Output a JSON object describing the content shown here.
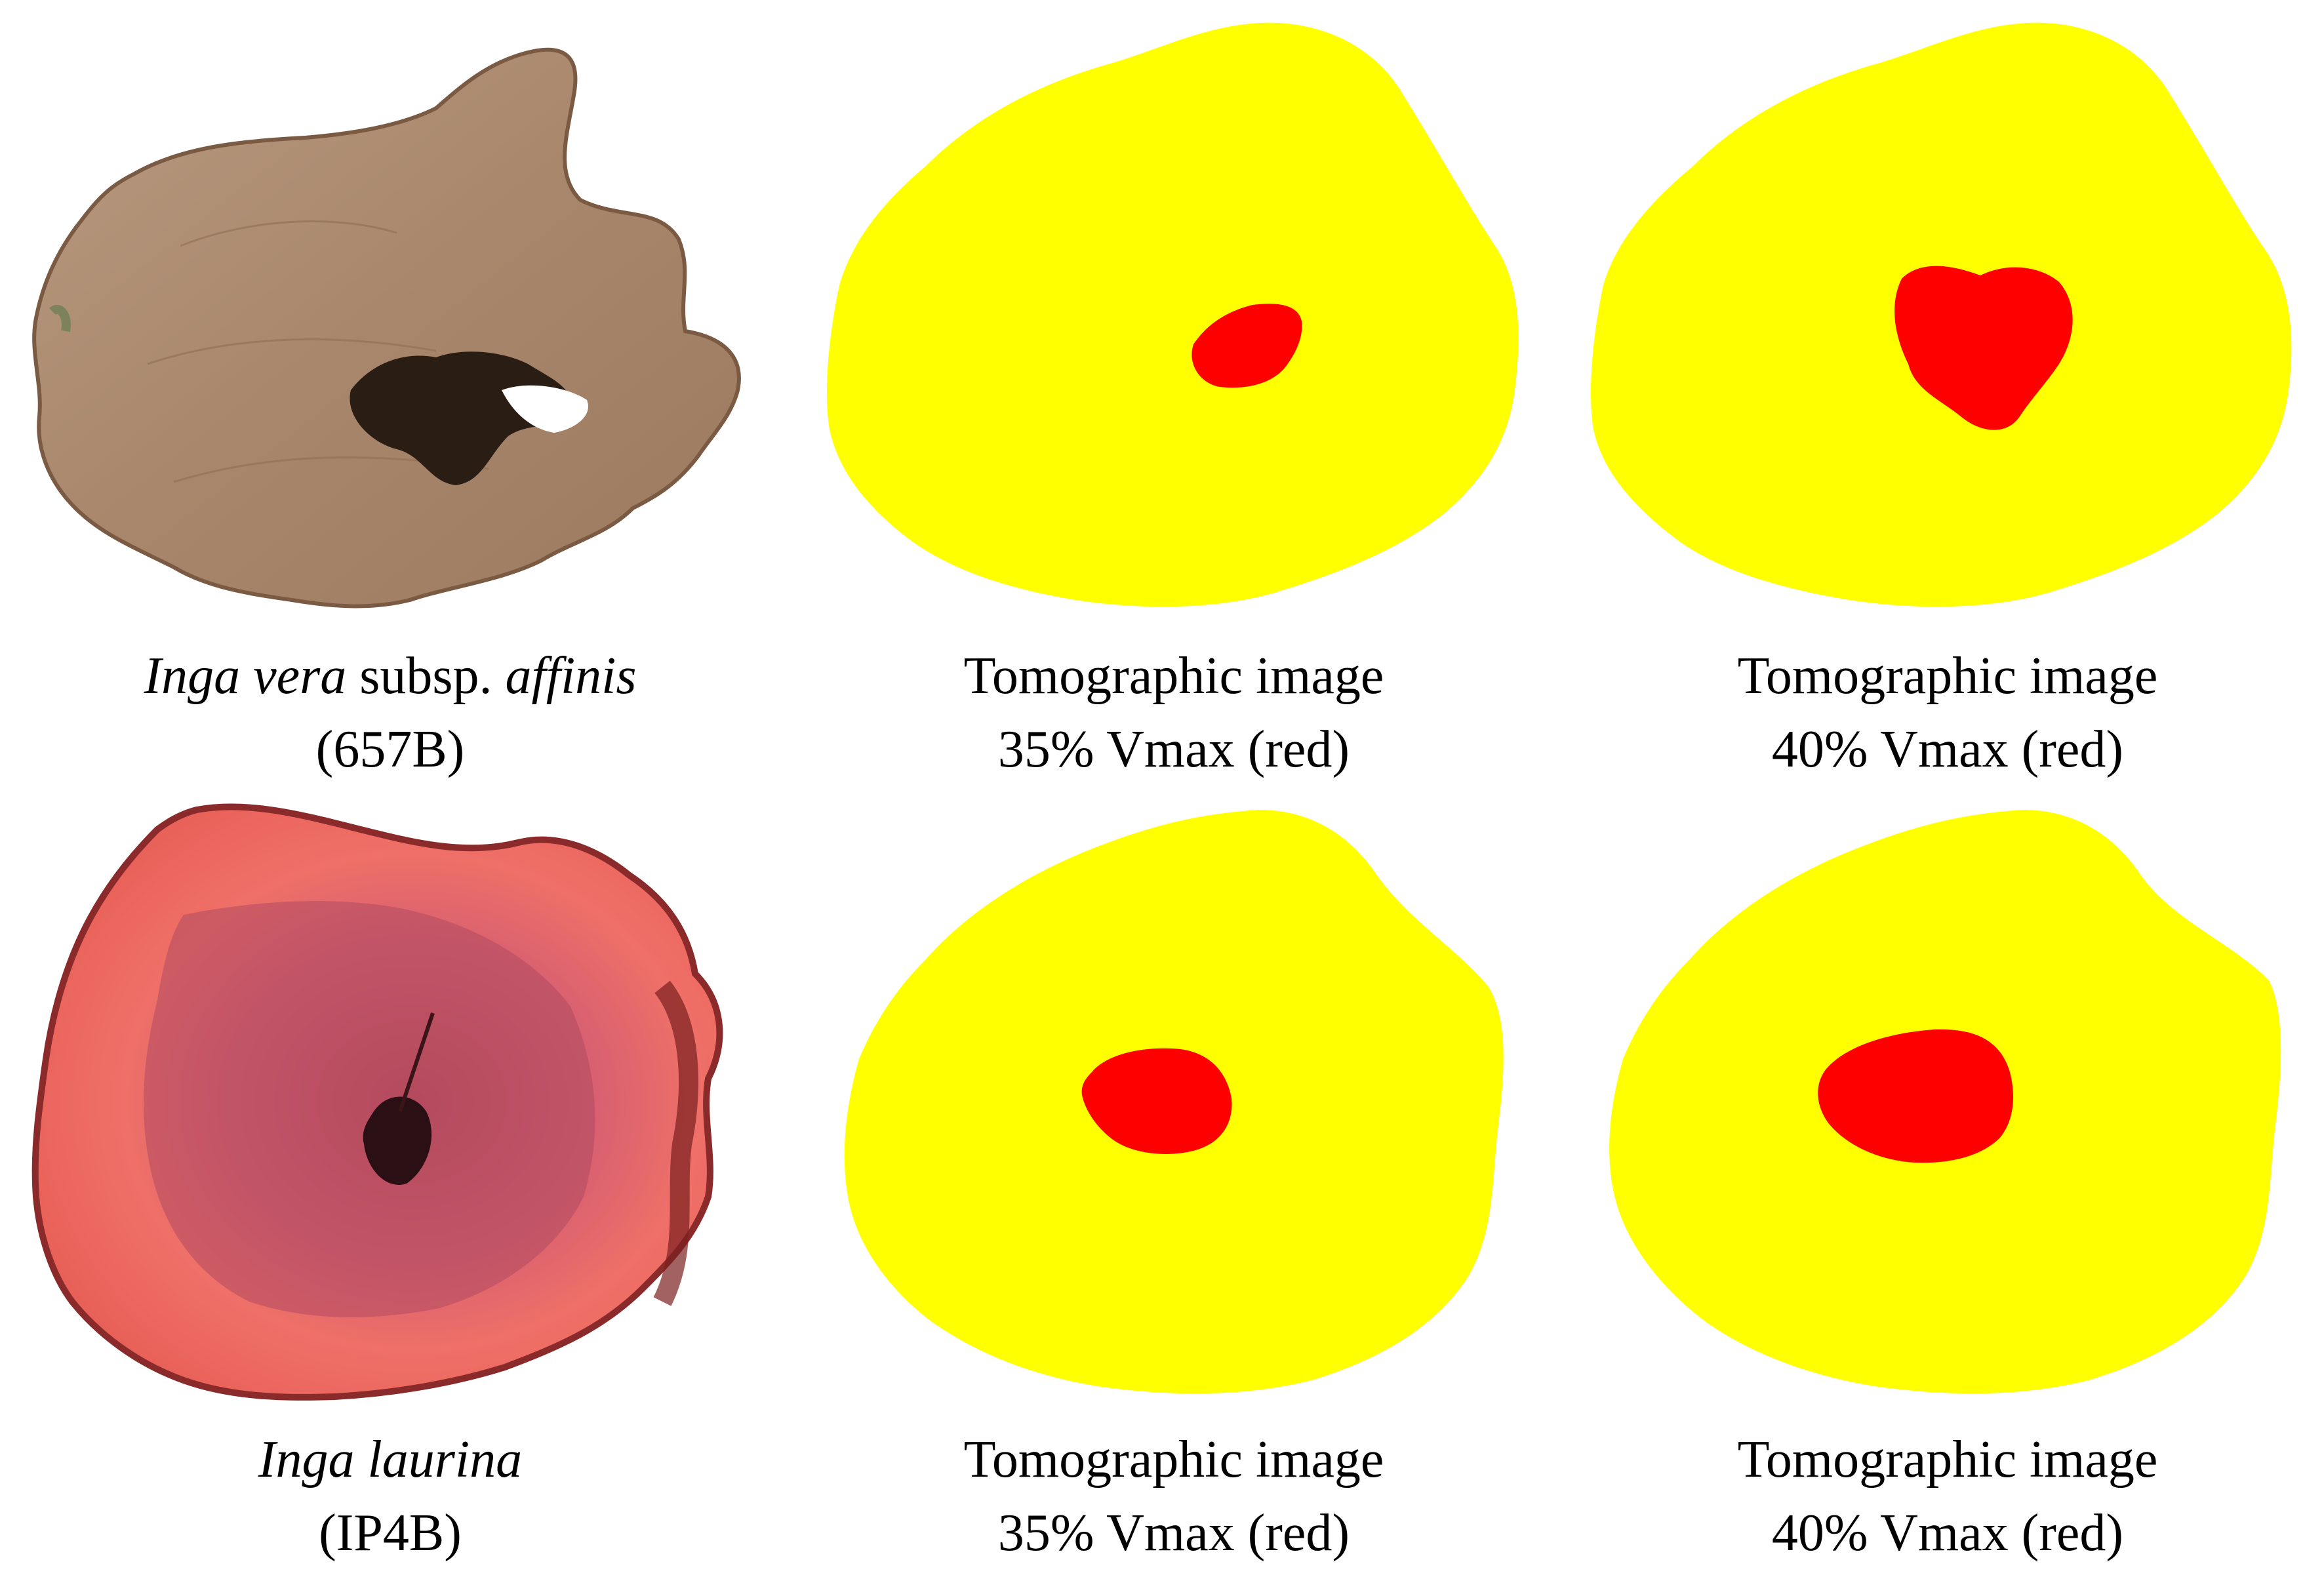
{
  "colors": {
    "sound_wood": "#ffff00",
    "decay": "#ff0000",
    "background": "#ffffff"
  },
  "rows": [
    {
      "photo": {
        "species": {
          "italic_1": "Inga vera",
          "plain": " subsp. ",
          "italic_2": "affinis"
        },
        "sample_id": "(657B)",
        "image": "wood-cross-section-photo-brown"
      },
      "tomograms": [
        {
          "line1": "Tomographic image",
          "line2": "35% Vmax (red)"
        },
        {
          "line1": "Tomographic image",
          "line2": "40% Vmax (red)"
        }
      ]
    },
    {
      "photo": {
        "species": {
          "italic_1": "Inga laurina",
          "plain": "",
          "italic_2": ""
        },
        "sample_id": "(IP4B)",
        "image": "wood-cross-section-photo-red"
      },
      "tomograms": [
        {
          "line1": "Tomographic image",
          "line2": "35% Vmax (red)"
        },
        {
          "line1": "Tomographic image",
          "line2": "40% Vmax (red)"
        }
      ]
    }
  ]
}
